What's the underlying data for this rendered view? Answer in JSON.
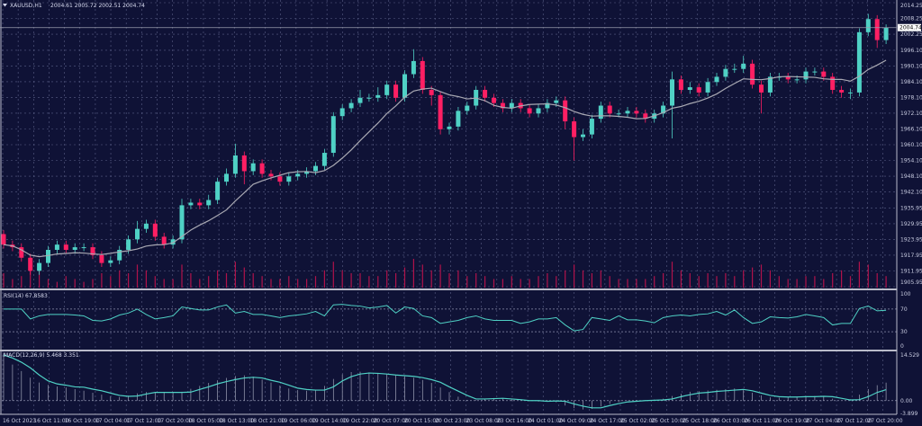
{
  "colors": {
    "background": "#0f1236",
    "bull": "#4fd1c5",
    "bear": "#ff1f63",
    "ma": "#a9a9b3",
    "grid": "#5a5f86",
    "volume": "#b0124a",
    "rsi": "#4fd1c5",
    "macd_signal": "#4fd1c5",
    "macd_hist": "#a0a3b8"
  },
  "header": {
    "symbol": "XAUUSD,H1",
    "ohlc": "2004.61 2005.72 2002.51 2004.74"
  },
  "current_price_label": "2004.74",
  "rsi_header": "RSI(14) 67.8583",
  "macd_header": "MACD(12,26,9) 5.468 3.351",
  "chart_data": [
    {
      "type": "candlestick",
      "title": "XAUUSD,H1",
      "ylim": [
        1905.95,
        2014.25
      ],
      "grid": true,
      "price_ticks": [
        "2014.25",
        "2008.25",
        "2002.25",
        "1996.10",
        "1990.10",
        "1984.10",
        "1978.10",
        "1972.10",
        "1966.10",
        "1960.10",
        "1954.10",
        "1948.10",
        "1942.10",
        "1935.95",
        "1929.95",
        "1923.95",
        "1917.95",
        "1911.95",
        "1905.95"
      ],
      "time_ticks": [
        "16 Oct 2023",
        "16 Oct 11:00",
        "16 Oct 19:00",
        "17 Oct 04:00",
        "17 Oct 12:00",
        "17 Oct 20:00",
        "18 Oct 05:00",
        "18 Oct 13:00",
        "18 Oct 21:00",
        "19 Oct 06:00",
        "19 Oct 14:00",
        "19 Oct 22:00",
        "20 Oct 07:00",
        "20 Oct 15:00",
        "20 Oct 23:00",
        "23 Oct 08:00",
        "23 Oct 16:00",
        "24 Oct 01:00",
        "24 Oct 09:00",
        "24 Oct 17:00",
        "25 Oct 02:00",
        "25 Oct 10:00",
        "25 Oct 18:00",
        "26 Oct 03:00",
        "26 Oct 11:00",
        "26 Oct 19:00",
        "27 Oct 04:00",
        "27 Oct 12:00",
        "27 Oct 20:00"
      ],
      "last_price": 2004.74,
      "open": [
        1926,
        1922,
        1921,
        1917,
        1912,
        1915,
        1920,
        1922,
        1920,
        1921,
        1921,
        1918,
        1915,
        1916,
        1920,
        1924,
        1928,
        1930,
        1925,
        1922,
        1924,
        1937,
        1938,
        1937,
        1939,
        1946,
        1949,
        1956,
        1950,
        1953,
        1949,
        1948,
        1946,
        1948,
        1949,
        1950,
        1952,
        1957,
        1971,
        1974,
        1976,
        1978,
        1978,
        1979,
        1983,
        1978,
        1987,
        1992,
        1981,
        1979,
        1966,
        1967,
        1973,
        1975,
        1981,
        1978,
        1976,
        1974,
        1976,
        1974,
        1972,
        1974,
        1976,
        1977,
        1969,
        1963,
        1964,
        1970,
        1975,
        1972,
        1972,
        1973,
        1972,
        1970,
        1972,
        1975,
        1985,
        1981,
        1982,
        1980,
        1984,
        1986,
        1989,
        1989,
        1991,
        1983,
        1980,
        1986,
        1986,
        1985,
        1985,
        1988,
        1988,
        1986,
        1981,
        1980,
        1980,
        2003,
        2008,
        2000
      ],
      "high": [
        1927.5,
        1923.5,
        1922.5,
        1918.5,
        1916.5,
        1921.5,
        1923.5,
        1923.5,
        1922.5,
        1922.5,
        1922.5,
        1919.5,
        1917.5,
        1921.5,
        1925.5,
        1931,
        1931.5,
        1931.5,
        1926.5,
        1925.5,
        1939.5,
        1939.5,
        1939.5,
        1941,
        1947.5,
        1951,
        1960.5,
        1957.5,
        1954.5,
        1954.5,
        1950.5,
        1949.5,
        1949.5,
        1950.5,
        1951.5,
        1953.5,
        1958.5,
        1972.5,
        1975.5,
        1977.5,
        1981,
        1979.5,
        1982,
        1984.5,
        1984.5,
        1988.5,
        1996.5,
        1993.5,
        1982.5,
        1980.5,
        1968.5,
        1974.5,
        1976.5,
        1982.5,
        1982.5,
        1979.5,
        1977.5,
        1977.5,
        1977.5,
        1975.5,
        1975.5,
        1977.5,
        1978.5,
        1978.5,
        1970.5,
        1966,
        1971.5,
        1976.5,
        1976.5,
        1973.5,
        1974.5,
        1974.5,
        1973.5,
        1973.5,
        1976.5,
        1988,
        1986.5,
        1984,
        1983.5,
        1985.5,
        1987.5,
        1990.5,
        1991,
        1994,
        1992.5,
        1984.5,
        1987.5,
        1987.5,
        1987.5,
        1986.5,
        1989.5,
        1989.5,
        1989.5,
        1987.5,
        1982.5,
        1981.5,
        2004.5,
        2010,
        2009.5,
        2006
      ],
      "low": [
        1920.5,
        1919.5,
        1915.5,
        1910.5,
        1910.5,
        1913.5,
        1918.5,
        1918.5,
        1918.5,
        1919.5,
        1916.5,
        1913.5,
        1913.5,
        1914.5,
        1918.5,
        1922.5,
        1926.5,
        1923.5,
        1920.5,
        1920.5,
        1922.5,
        1935.5,
        1935.5,
        1935.5,
        1937.5,
        1944.5,
        1947.5,
        1945,
        1948.5,
        1947.5,
        1946.5,
        1944.5,
        1944.5,
        1946.5,
        1947.5,
        1948.5,
        1950.5,
        1955.5,
        1969.5,
        1972.5,
        1974.5,
        1976.5,
        1976.5,
        1977.5,
        1976.5,
        1976.5,
        1985.5,
        1979.5,
        1975,
        1964,
        1964,
        1965.5,
        1971.5,
        1973.5,
        1976.5,
        1974.5,
        1972.5,
        1972.5,
        1972.5,
        1970.5,
        1970.5,
        1972.5,
        1974.5,
        1966,
        1954,
        1961.5,
        1962.5,
        1968.5,
        1970.5,
        1970.5,
        1970.5,
        1970.5,
        1968.5,
        1968.5,
        1970.5,
        1962.5,
        1979.5,
        1979.5,
        1978.5,
        1978.5,
        1982.5,
        1984.5,
        1987.5,
        1987.5,
        1981.5,
        1972,
        1978.5,
        1984.5,
        1983.5,
        1983.5,
        1983.5,
        1986.5,
        1984.5,
        1979.5,
        1978,
        1977.5,
        1978.5,
        2001.5,
        1997,
        1998.5
      ],
      "close": [
        1922,
        1921,
        1917,
        1912,
        1915,
        1920,
        1922,
        1920,
        1921,
        1921,
        1918,
        1915,
        1916,
        1920,
        1924,
        1928,
        1930,
        1925,
        1922,
        1924,
        1937,
        1938,
        1937,
        1939,
        1946,
        1949,
        1956,
        1950,
        1953,
        1949,
        1948,
        1946,
        1948,
        1949,
        1950,
        1952,
        1957,
        1971,
        1974,
        1976,
        1978,
        1978,
        1979,
        1983,
        1978,
        1987,
        1992,
        1981,
        1979,
        1966,
        1967,
        1973,
        1975,
        1981,
        1978,
        1976,
        1974,
        1976,
        1974,
        1972,
        1974,
        1976,
        1977,
        1969,
        1963,
        1964,
        1970,
        1975,
        1972,
        1972,
        1973,
        1972,
        1970,
        1972,
        1975,
        1985,
        1981,
        1982,
        1980,
        1984,
        1986,
        1989,
        1989,
        1991,
        1983,
        1980,
        1986,
        1986,
        1985,
        1985,
        1988,
        1988,
        1986,
        1981,
        1980,
        1980,
        2003,
        2008,
        2000,
        2004.74
      ],
      "volume_relative": [
        0.5,
        0.3,
        0.4,
        0.8,
        0.6,
        0.3,
        0.2,
        0.4,
        0.3,
        0.2,
        0.3,
        0.5,
        0.4,
        0.6,
        0.5,
        0.8,
        0.6,
        0.4,
        0.3,
        0.3,
        0.8,
        0.5,
        0.3,
        0.4,
        0.6,
        0.5,
        0.9,
        0.7,
        0.5,
        0.4,
        0.3,
        0.3,
        0.4,
        0.3,
        0.3,
        0.4,
        0.6,
        0.9,
        0.6,
        0.5,
        0.5,
        0.4,
        0.4,
        0.6,
        0.5,
        0.7,
        1.0,
        0.8,
        0.6,
        0.8,
        0.5,
        0.6,
        0.4,
        0.5,
        0.4,
        0.3,
        0.3,
        0.4,
        0.3,
        0.3,
        0.4,
        0.5,
        0.4,
        0.6,
        0.8,
        0.6,
        0.5,
        0.6,
        0.4,
        0.3,
        0.3,
        0.3,
        0.3,
        0.4,
        0.5,
        0.9,
        0.6,
        0.5,
        0.4,
        0.5,
        0.4,
        0.5,
        0.4,
        0.6,
        0.7,
        0.8,
        0.6,
        0.4,
        0.3,
        0.3,
        0.4,
        0.4,
        0.3,
        0.5,
        0.6,
        0.4,
        0.9,
        0.8,
        0.5,
        0.4
      ]
    },
    {
      "type": "line",
      "title": "RSI(14) 67.8583",
      "ylim": [
        0,
        100
      ],
      "levels": [
        "100",
        "70",
        "30",
        "0"
      ],
      "values": [
        70,
        70,
        70,
        52.6,
        58,
        60.5,
        60.5,
        60.5,
        59.5,
        58,
        50,
        49,
        52.6,
        59.5,
        63,
        70,
        60.5,
        52.6,
        55,
        58,
        73.7,
        71,
        68.4,
        68.4,
        73.7,
        77.4,
        63,
        65.8,
        60.5,
        60.5,
        58,
        55,
        58,
        59.5,
        61.6,
        65.8,
        58,
        77.4,
        78.4,
        76.3,
        75.3,
        72,
        73.7,
        76.3,
        63,
        73.7,
        71,
        58,
        55,
        44.7,
        47.4,
        50,
        55,
        58,
        52.6,
        50,
        50,
        50,
        44.7,
        47.4,
        52.6,
        52.6,
        55,
        42,
        31.6,
        34,
        55,
        52.6,
        50,
        58,
        51,
        51,
        49,
        45.8,
        55,
        58,
        59.5,
        58,
        60.5,
        61.6,
        65.8,
        59.5,
        68.4,
        55,
        44.7,
        47.4,
        56.3,
        55,
        54.2,
        56.3,
        60.5,
        58,
        55,
        42,
        44.7,
        44.7,
        71,
        75.3,
        66.8,
        67.86
      ]
    },
    {
      "type": "bar+line",
      "title": "MACD(12,26,9) 5.468 3.351",
      "ylim": [
        -3.899,
        14.529
      ],
      "levels": [
        "14.529",
        "0.00",
        "-3.899"
      ],
      "macd": [
        14.5,
        11.0,
        9.0,
        7.0,
        5.5,
        4.8,
        4.3,
        4.0,
        3.5,
        3.0,
        2.4,
        1.8,
        1.3,
        1.1,
        1.5,
        2.2,
        2.6,
        2.6,
        2.5,
        2.4,
        2.7,
        3.6,
        4.5,
        5.4,
        6.2,
        6.9,
        7.5,
        7.7,
        7.3,
        6.4,
        5.5,
        4.6,
        3.7,
        3.2,
        3.0,
        3.1,
        4.5,
        6.6,
        8.0,
        8.7,
        8.8,
        8.6,
        8.3,
        8.0,
        7.7,
        7.4,
        7.0,
        6.3,
        5.4,
        4.0,
        2.6,
        1.2,
        0.2,
        0.2,
        0.6,
        0.8,
        0.6,
        0.3,
        0.0,
        -0.1,
        -0.3,
        -0.2,
        -0.5,
        -1.5,
        -2.3,
        -2.7,
        -2.5,
        -1.8,
        -1.0,
        -0.4,
        -0.1,
        0.1,
        0.2,
        0.3,
        0.6,
        1.4,
        2.1,
        2.7,
        2.9,
        3.1,
        3.3,
        3.5,
        3.7,
        3.2,
        2.4,
        1.6,
        1.0,
        0.9,
        1.0,
        1.2,
        1.3,
        1.4,
        1.3,
        0.6,
        0.0,
        0.4,
        1.8,
        3.5,
        4.7,
        5.468
      ],
      "signal": [
        13.9,
        13.0,
        11.7,
        10.0,
        7.8,
        6.0,
        5.1,
        4.7,
        4.2,
        4.1,
        3.5,
        3.0,
        2.3,
        1.6,
        1.3,
        1.4,
        2.0,
        2.5,
        2.5,
        2.5,
        2.5,
        2.6,
        3.4,
        4.2,
        5.1,
        5.8,
        6.4,
        6.9,
        7.1,
        6.9,
        6.2,
        5.6,
        4.7,
        3.8,
        3.4,
        3.2,
        3.2,
        4.2,
        6.0,
        7.3,
        8.1,
        8.4,
        8.3,
        8.1,
        7.8,
        7.6,
        7.4,
        7.0,
        6.4,
        5.6,
        4.2,
        2.9,
        1.6,
        0.5,
        0.5,
        0.6,
        0.7,
        0.5,
        0.3,
        0.0,
        0.0,
        -0.2,
        -0.1,
        -0.2,
        -1.0,
        -1.7,
        -2.2,
        -2.2,
        -1.5,
        -0.9,
        -0.4,
        -0.2,
        0.0,
        0.1,
        0.2,
        0.5,
        1.2,
        1.8,
        2.3,
        2.5,
        2.8,
        3.0,
        3.2,
        3.4,
        3.0,
        2.3,
        1.6,
        1.2,
        1.1,
        1.1,
        1.2,
        1.2,
        1.3,
        1.2,
        0.7,
        0.2,
        0.3,
        1.2,
        2.5,
        3.351
      ]
    }
  ]
}
